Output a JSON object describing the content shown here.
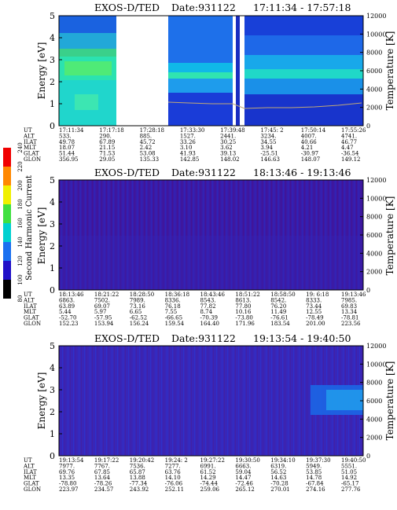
{
  "chart_data": [
    {
      "type": "heatmap",
      "title": "EXOS-D/TED",
      "date": "Date:931122",
      "time_range": "17:11:34 - 17:57:18",
      "ylabel": "Energy [eV]",
      "ylim": [
        0,
        5
      ],
      "y_ticks": [
        "0",
        "1",
        "2",
        "3",
        "4",
        "5"
      ],
      "y2label": "Temperature [K]",
      "y2lim": [
        0,
        12000
      ],
      "y2_ticks": [
        "0",
        "2000",
        "4000",
        "6000",
        "8000",
        "10000",
        "12000"
      ],
      "data_gaps": true,
      "has_temperature_trace": true,
      "table_row_labels": [
        "UT",
        "ALT",
        "ILAT",
        "MLT",
        "GLAT",
        "GLON"
      ],
      "table_columns": [
        [
          "17:11:34",
          "533.",
          "49.78",
          "18.07",
          "51.44",
          "356.95"
        ],
        [
          "17:17:18",
          "290.",
          "67.89",
          "21.15",
          "71.53",
          "29.05"
        ],
        [
          "17:28:18",
          "885.",
          "45.72",
          "2.42",
          "53.08",
          "135.33"
        ],
        [
          "17:33:30",
          "1527.",
          "33.26",
          "3.10",
          "41.93",
          "142.85"
        ],
        [
          "17:39:48",
          "2441.",
          "30.25",
          "3.62",
          "39.13",
          "148.02"
        ],
        [
          "17:45: 2",
          "3234.",
          "34.55",
          "3.94",
          "-25.51",
          "146.63"
        ],
        [
          "17:50:14",
          "4007.",
          "40.66",
          "4.21",
          "-30.97",
          "148.07"
        ],
        [
          "17:55:26",
          "4741.",
          "46.77",
          "4.47",
          "-36.54",
          "149.12"
        ]
      ]
    },
    {
      "type": "heatmap",
      "title": "EXOS-D/TED",
      "date": "Date:931122",
      "time_range": "18:13:46 - 19:13:46",
      "ylabel": "Energy [eV]",
      "ylim": [
        0,
        5
      ],
      "y_ticks": [
        "0",
        "1",
        "2",
        "3",
        "4",
        "5"
      ],
      "y2label": "Temperature [K]",
      "y2lim": [
        0,
        12000
      ],
      "y2_ticks": [
        "0",
        "2000",
        "4000",
        "6000",
        "8000",
        "10000",
        "12000"
      ],
      "colorbar_label": "Second Harmonic Current",
      "colorbar_ticks": [
        "80",
        "100",
        "120",
        "140",
        "160",
        "180",
        "200",
        "220",
        "240"
      ],
      "table_row_labels": [
        "UT",
        "ALT",
        "ILAT",
        "MLT",
        "GLAT",
        "GLON"
      ],
      "table_columns": [
        [
          "18:13:46",
          "6863.",
          "63.89",
          "5.44",
          "-52.70",
          "152.23"
        ],
        [
          "18:21:22",
          "7502.",
          "69.07",
          "5.97",
          "-57.95",
          "153.94"
        ],
        [
          "18:28:50",
          "7989.",
          "73.16",
          "6.65",
          "-62.52",
          "156.24"
        ],
        [
          "18:36:18",
          "8336.",
          "76.18",
          "7.55",
          "-66.65",
          "159.54"
        ],
        [
          "18:43:46",
          "8543.",
          "77.82",
          "8.74",
          "-70.39",
          "164.40"
        ],
        [
          "18:51:22",
          "8613.",
          "77.80",
          "10.16",
          "-73.80",
          "171.96"
        ],
        [
          "18:58:50",
          "8542.",
          "76.20",
          "11.49",
          "-76.61",
          "183.54"
        ],
        [
          "19: 6:18",
          "8333.",
          "73.44",
          "12.55",
          "-78.49",
          "201.00"
        ],
        [
          "19:13:46",
          "7985.",
          "69.83",
          "13.34",
          "-78.81",
          "223.56"
        ]
      ]
    },
    {
      "type": "heatmap",
      "title": "EXOS-D/TED",
      "date": "Date:931122",
      "time_range": "19:13:54 - 19:40:50",
      "ylabel": "Energy [eV]",
      "ylim": [
        0,
        5
      ],
      "y_ticks": [
        "0",
        "1",
        "2",
        "3",
        "4",
        "5"
      ],
      "y2label": "Temperature [K]",
      "y2lim": [
        0,
        12000
      ],
      "y2_ticks": [
        "0",
        "2000",
        "4000",
        "6000",
        "8000",
        "10000",
        "12000"
      ],
      "table_row_labels": [
        "UT",
        "ALT",
        "ILAT",
        "MLT",
        "GLAT",
        "GLON"
      ],
      "table_columns": [
        [
          "19:13:54",
          "7977.",
          "69.76",
          "13.35",
          "-78.80",
          "223.97"
        ],
        [
          "19:17:22",
          "7767.",
          "67.85",
          "13.64",
          "-78.26",
          "234.57"
        ],
        [
          "19:20:42",
          "7536.",
          "65.87",
          "13.88",
          "-77.34",
          "243.92"
        ],
        [
          "19:24: 2",
          "7277.",
          "63.76",
          "14.10",
          "-76.06",
          "252.11"
        ],
        [
          "19:27:22",
          "6991.",
          "61.52",
          "14.29",
          "-74.44",
          "259.06"
        ],
        [
          "19:30:50",
          "6663.",
          "59.04",
          "14.47",
          "-72.46",
          "265.12"
        ],
        [
          "19:34:10",
          "6319.",
          "56.52",
          "14.63",
          "-70.28",
          "270.01"
        ],
        [
          "19:37:30",
          "5949.",
          "53.85",
          "14.78",
          "-67.84",
          "274.16"
        ],
        [
          "19:40:50",
          "5551.",
          "51.05",
          "14.92",
          "-65.17",
          "277.76"
        ]
      ]
    }
  ]
}
